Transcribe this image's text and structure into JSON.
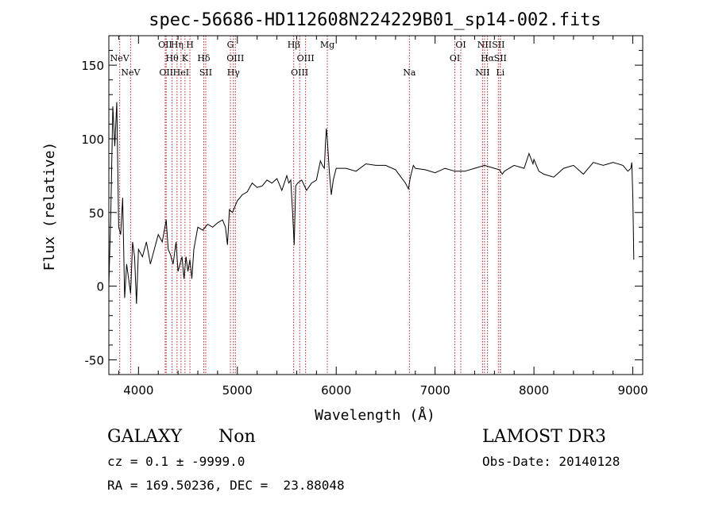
{
  "chart_data": {
    "type": "line",
    "title": "spec-56686-HD112608N224229B01_sp14-002.fits",
    "xlabel": "Wavelength (Å)",
    "ylabel": "Flux (relative)",
    "xlim": [
      3700,
      9100
    ],
    "ylim": [
      -60,
      170
    ],
    "x_ticks": [
      4000,
      5000,
      6000,
      7000,
      8000,
      9000
    ],
    "y_ticks": [
      -50,
      0,
      50,
      100,
      150
    ],
    "grid": false,
    "series": [
      {
        "x": [
          3700,
          3720,
          3740,
          3760,
          3780,
          3800,
          3820,
          3840,
          3860,
          3880,
          3900,
          3920,
          3940,
          3960,
          3980,
          4000,
          4040,
          4080,
          4120,
          4160,
          4200,
          4240,
          4280,
          4300,
          4320,
          4350,
          4380,
          4400,
          4420,
          4440,
          4460,
          4480,
          4500,
          4520,
          4540,
          4560,
          4600,
          4650,
          4700,
          4750,
          4800,
          4850,
          4880,
          4900,
          4920,
          4950,
          5000,
          5050,
          5100,
          5150,
          5200,
          5250,
          5300,
          5350,
          5400,
          5450,
          5500,
          5520,
          5540,
          5560,
          5575,
          5590,
          5610,
          5650,
          5700,
          5750,
          5800,
          5840,
          5860,
          5880,
          5890,
          5900,
          5910,
          5930,
          5950,
          5970,
          6000,
          6100,
          6200,
          6300,
          6400,
          6500,
          6600,
          6700,
          6730,
          6750,
          6780,
          6800,
          6900,
          7000,
          7100,
          7200,
          7300,
          7400,
          7500,
          7600,
          7650,
          7680,
          7700,
          7750,
          7800,
          7900,
          7950,
          7990,
          8000,
          8050,
          8100,
          8200,
          8300,
          8400,
          8500,
          8600,
          8700,
          8800,
          8900,
          8950,
          8980,
          8990,
          9000,
          9010
        ],
        "y": [
          0,
          50,
          122,
          95,
          125,
          40,
          35,
          60,
          -8,
          15,
          5,
          -5,
          30,
          20,
          -12,
          25,
          20,
          30,
          15,
          25,
          35,
          30,
          45,
          25,
          22,
          15,
          30,
          10,
          15,
          20,
          5,
          20,
          10,
          18,
          5,
          25,
          40,
          38,
          42,
          40,
          43,
          45,
          40,
          28,
          52,
          50,
          58,
          62,
          64,
          70,
          67,
          68,
          72,
          70,
          73,
          65,
          75,
          70,
          72,
          48,
          28,
          68,
          70,
          72,
          65,
          70,
          72,
          85,
          82,
          80,
          95,
          107,
          100,
          78,
          62,
          72,
          80,
          80,
          78,
          83,
          82,
          82,
          79,
          70,
          66,
          74,
          82,
          80,
          79,
          77,
          80,
          78,
          78,
          80,
          82,
          80,
          79,
          76,
          78,
          80,
          82,
          80,
          90,
          83,
          86,
          78,
          76,
          74,
          80,
          82,
          76,
          84,
          82,
          84,
          82,
          78,
          80,
          84,
          60,
          18
        ]
      }
    ],
    "lines": [
      {
        "label": "NeV",
        "x": 3810,
        "row": 1
      },
      {
        "label": "NeV",
        "x": 3920,
        "row": 2
      },
      {
        "label": "OII",
        "x": 4270,
        "row": 0
      },
      {
        "label": "OII",
        "x": 4280,
        "row": 2
      },
      {
        "label": "Hη",
        "x": 4390,
        "row": 0
      },
      {
        "label": "Hθ",
        "x": 4340,
        "row": 1
      },
      {
        "label": "HeI",
        "x": 4430,
        "row": 2
      },
      {
        "label": "H",
        "x": 4520,
        "row": 0
      },
      {
        "label": "K",
        "x": 4470,
        "row": 1
      },
      {
        "label": "Hδ",
        "x": 4660,
        "row": 1
      },
      {
        "label": "SII",
        "x": 4680,
        "row": 2
      },
      {
        "label": "G",
        "x": 4930,
        "row": 0
      },
      {
        "label": "OIII",
        "x": 4980,
        "row": 1
      },
      {
        "label": "Hγ",
        "x": 4960,
        "row": 2
      },
      {
        "label": "Hβ",
        "x": 5570,
        "row": 0
      },
      {
        "label": "OIII",
        "x": 5690,
        "row": 1
      },
      {
        "label": "OIII",
        "x": 5630,
        "row": 2
      },
      {
        "label": "Mg",
        "x": 5910,
        "row": 0
      },
      {
        "label": "Na",
        "x": 6740,
        "row": 2
      },
      {
        "label": "OI",
        "x": 7260,
        "row": 0
      },
      {
        "label": "OI",
        "x": 7200,
        "row": 1
      },
      {
        "label": "NII",
        "x": 7500,
        "row": 0
      },
      {
        "label": "Hα",
        "x": 7530,
        "row": 1
      },
      {
        "label": "NII",
        "x": 7480,
        "row": 2
      },
      {
        "label": "SII",
        "x": 7640,
        "row": 0
      },
      {
        "label": "SII",
        "x": 7660,
        "row": 1
      },
      {
        "label": "Li",
        "x": 7660,
        "row": 2
      }
    ]
  },
  "info": {
    "class": "GALAXY",
    "subclass": "Non",
    "survey": "LAMOST DR3",
    "cz": "cz = 0.1 ± -9999.0",
    "obs_date": "Obs-Date: 20140128",
    "coords": "RA = 169.50236, DEC =  23.88048"
  },
  "colors": {
    "spectrum": "#000000",
    "line_markers": "#b22222",
    "axes": "#000000"
  }
}
